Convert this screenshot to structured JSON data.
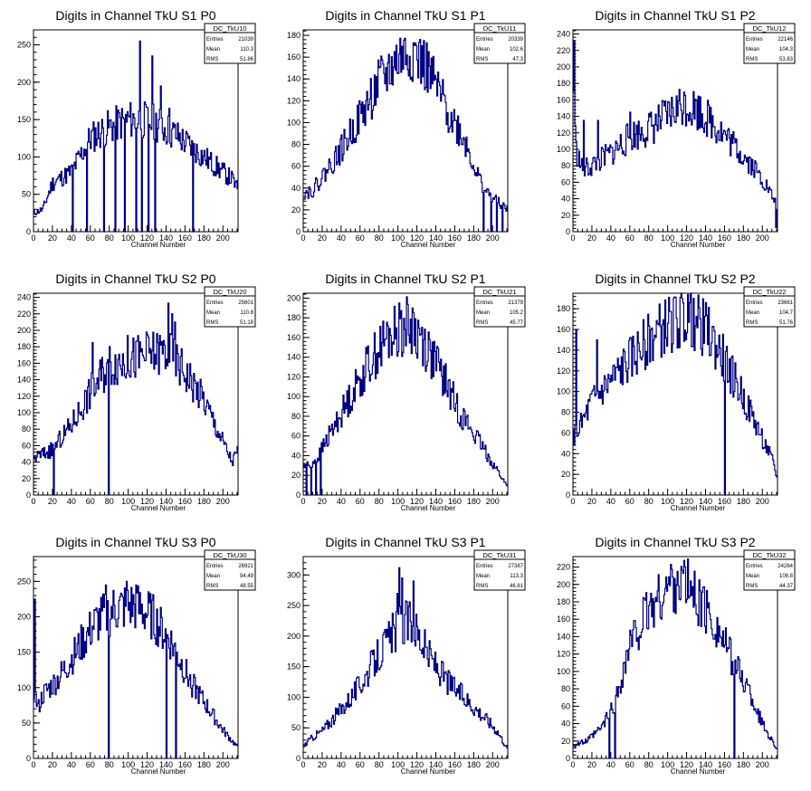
{
  "page": {
    "background": "#ffffff",
    "line_color": "#000080"
  },
  "chart_data": [
    {
      "type": "histogram",
      "title": "Digits in Channel TkU S1 P0",
      "xlabel": "Channel Number",
      "ylabel": "",
      "xlim": [
        0,
        216
      ],
      "ylim": [
        0,
        270
      ],
      "xticks": [
        0,
        20,
        40,
        60,
        80,
        100,
        120,
        140,
        160,
        180,
        200
      ],
      "yticks": [
        0,
        50,
        100,
        150,
        200,
        250
      ],
      "stats": {
        "name": "DC_TkU10",
        "entries": "21039",
        "mean": "110.3",
        "rms": "51.86"
      },
      "profile": [
        [
          0,
          25
        ],
        [
          10,
          30
        ],
        [
          20,
          65
        ],
        [
          40,
          80
        ],
        [
          60,
          125
        ],
        [
          80,
          140
        ],
        [
          100,
          150
        ],
        [
          115,
          150
        ],
        [
          130,
          145
        ],
        [
          150,
          130
        ],
        [
          170,
          110
        ],
        [
          190,
          90
        ],
        [
          210,
          70
        ],
        [
          216,
          55
        ]
      ],
      "spikes": [
        [
          112,
          255
        ],
        [
          125,
          235
        ],
        [
          134,
          195
        ],
        [
          143,
          165
        ]
      ],
      "dips": [
        [
          41,
          0
        ],
        [
          56,
          0
        ],
        [
          74,
          0
        ],
        [
          86,
          0
        ],
        [
          96,
          0
        ],
        [
          108,
          0
        ],
        [
          114,
          0
        ],
        [
          121,
          0
        ],
        [
          128,
          0
        ],
        [
          168,
          0
        ]
      ],
      "seed": 11
    },
    {
      "type": "histogram",
      "title": "Digits in Channel TkU S1 P1",
      "xlabel": "Channel Number",
      "ylabel": "",
      "xlim": [
        0,
        216
      ],
      "ylim": [
        0,
        185
      ],
      "xticks": [
        0,
        20,
        40,
        60,
        80,
        100,
        120,
        140,
        160,
        180,
        200
      ],
      "yticks": [
        0,
        20,
        40,
        60,
        80,
        100,
        120,
        140,
        160,
        180
      ],
      "stats": {
        "name": "DC_TkU11",
        "entries": "20339",
        "mean": "102.6",
        "rms": "47.3"
      },
      "profile": [
        [
          0,
          35
        ],
        [
          10,
          38
        ],
        [
          20,
          50
        ],
        [
          40,
          75
        ],
        [
          60,
          105
        ],
        [
          80,
          135
        ],
        [
          100,
          158
        ],
        [
          115,
          165
        ],
        [
          130,
          150
        ],
        [
          150,
          115
        ],
        [
          170,
          85
        ],
        [
          185,
          50
        ],
        [
          195,
          35
        ],
        [
          216,
          20
        ]
      ],
      "spikes": [
        [
          118,
          173
        ],
        [
          104,
          170
        ]
      ],
      "dips": [
        [
          190,
          0
        ],
        [
          198,
          0
        ],
        [
          204,
          0
        ],
        [
          210,
          0
        ]
      ],
      "seed": 22
    },
    {
      "type": "histogram",
      "title": "Digits in Channel TkU S1 P2",
      "xlabel": "Channel Number",
      "ylabel": "",
      "xlim": [
        0,
        216
      ],
      "ylim": [
        0,
        245
      ],
      "xticks": [
        0,
        20,
        40,
        60,
        80,
        100,
        120,
        140,
        160,
        180,
        200
      ],
      "yticks": [
        0,
        20,
        40,
        60,
        80,
        100,
        120,
        140,
        160,
        180,
        200,
        220,
        240
      ],
      "stats": {
        "name": "DC_TkU12",
        "entries": "22146",
        "mean": "104.3",
        "rms": "53.83"
      },
      "profile": [
        [
          0,
          200
        ],
        [
          3,
          100
        ],
        [
          10,
          75
        ],
        [
          20,
          80
        ],
        [
          40,
          95
        ],
        [
          60,
          115
        ],
        [
          80,
          125
        ],
        [
          100,
          140
        ],
        [
          115,
          155
        ],
        [
          130,
          150
        ],
        [
          150,
          130
        ],
        [
          170,
          105
        ],
        [
          190,
          80
        ],
        [
          205,
          55
        ],
        [
          216,
          30
        ]
      ],
      "spikes": [
        [
          1,
          232
        ],
        [
          11,
          135
        ],
        [
          26,
          135
        ],
        [
          60,
          145
        ]
      ],
      "dips": [
        [
          214,
          5
        ]
      ],
      "seed": 33
    },
    {
      "type": "histogram",
      "title": "Digits in Channel TkU S2 P0",
      "xlabel": "Channel Number",
      "ylabel": "",
      "xlim": [
        0,
        216
      ],
      "ylim": [
        0,
        245
      ],
      "xticks": [
        0,
        20,
        40,
        60,
        80,
        100,
        120,
        140,
        160,
        180,
        200
      ],
      "yticks": [
        0,
        20,
        40,
        60,
        80,
        100,
        120,
        140,
        160,
        180,
        200,
        220,
        240
      ],
      "stats": {
        "name": "DC_TkU20",
        "entries": "25601",
        "mean": "110.8",
        "rms": "51.18"
      },
      "profile": [
        [
          0,
          45
        ],
        [
          10,
          50
        ],
        [
          20,
          55
        ],
        [
          40,
          85
        ],
        [
          60,
          125
        ],
        [
          80,
          160
        ],
        [
          100,
          165
        ],
        [
          120,
          170
        ],
        [
          140,
          175
        ],
        [
          160,
          150
        ],
        [
          180,
          115
        ],
        [
          200,
          65
        ],
        [
          210,
          40
        ],
        [
          216,
          55
        ]
      ],
      "spikes": [
        [
          62,
          185
        ],
        [
          142,
          233
        ],
        [
          146,
          220
        ],
        [
          149,
          210
        ]
      ],
      "dips": [
        [
          21,
          0
        ],
        [
          79,
          0
        ]
      ],
      "seed": 44
    },
    {
      "type": "histogram",
      "title": "Digits in Channel TkU S2 P1",
      "xlabel": "Channel Number",
      "ylabel": "",
      "xlim": [
        0,
        216
      ],
      "ylim": [
        0,
        205
      ],
      "xticks": [
        0,
        20,
        40,
        60,
        80,
        100,
        120,
        140,
        160,
        180,
        200
      ],
      "yticks": [
        0,
        20,
        40,
        60,
        80,
        100,
        120,
        140,
        160,
        180,
        200
      ],
      "stats": {
        "name": "DC_TkU21",
        "entries": "21379",
        "mean": "105.2",
        "rms": "45.77"
      },
      "profile": [
        [
          0,
          30
        ],
        [
          7,
          30
        ],
        [
          15,
          38
        ],
        [
          30,
          65
        ],
        [
          50,
          100
        ],
        [
          70,
          135
        ],
        [
          90,
          160
        ],
        [
          110,
          172
        ],
        [
          125,
          160
        ],
        [
          145,
          125
        ],
        [
          165,
          85
        ],
        [
          185,
          55
        ],
        [
          205,
          25
        ],
        [
          216,
          8
        ]
      ],
      "spikes": [
        [
          101,
          195
        ],
        [
          115,
          190
        ]
      ],
      "dips": [
        [
          3,
          0
        ],
        [
          8,
          0
        ],
        [
          13,
          0
        ],
        [
          18,
          0
        ]
      ],
      "seed": 55
    },
    {
      "type": "histogram",
      "title": "Digits in Channel TkU S2 P2",
      "xlabel": "Channel Number",
      "ylabel": "",
      "xlim": [
        0,
        216
      ],
      "ylim": [
        0,
        195
      ],
      "xticks": [
        0,
        20,
        40,
        60,
        80,
        100,
        120,
        140,
        160,
        180,
        200
      ],
      "yticks": [
        0,
        20,
        40,
        60,
        80,
        100,
        120,
        140,
        160,
        180
      ],
      "stats": {
        "name": "DC_TkU22",
        "entries": "23661",
        "mean": "104.7",
        "rms": "51.76"
      },
      "profile": [
        [
          0,
          55
        ],
        [
          10,
          70
        ],
        [
          20,
          90
        ],
        [
          40,
          110
        ],
        [
          60,
          130
        ],
        [
          80,
          150
        ],
        [
          100,
          165
        ],
        [
          120,
          172
        ],
        [
          140,
          160
        ],
        [
          160,
          130
        ],
        [
          180,
          95
        ],
        [
          200,
          55
        ],
        [
          210,
          35
        ],
        [
          216,
          15
        ]
      ],
      "spikes": [
        [
          3,
          160
        ],
        [
          25,
          150
        ],
        [
          127,
          190
        ]
      ],
      "dips": [
        [
          160,
          0
        ]
      ],
      "seed": 66
    },
    {
      "type": "histogram",
      "title": "Digits in Channel TkU S3 P0",
      "xlabel": "Channel Number",
      "ylabel": "",
      "xlim": [
        0,
        216
      ],
      "ylim": [
        0,
        285
      ],
      "xticks": [
        0,
        20,
        40,
        60,
        80,
        100,
        120,
        140,
        160,
        180,
        200
      ],
      "yticks": [
        0,
        50,
        100,
        150,
        200,
        250
      ],
      "stats": {
        "name": "DC_TkU30",
        "entries": "26921",
        "mean": "94.49",
        "rms": "48.55"
      },
      "profile": [
        [
          0,
          100
        ],
        [
          5,
          70
        ],
        [
          10,
          90
        ],
        [
          25,
          110
        ],
        [
          45,
          150
        ],
        [
          65,
          190
        ],
        [
          85,
          210
        ],
        [
          105,
          215
        ],
        [
          125,
          200
        ],
        [
          145,
          165
        ],
        [
          165,
          110
        ],
        [
          185,
          70
        ],
        [
          200,
          40
        ],
        [
          216,
          15
        ]
      ],
      "spikes": [
        [
          1,
          225
        ],
        [
          76,
          245
        ],
        [
          98,
          250
        ],
        [
          108,
          245
        ]
      ],
      "dips": [
        [
          79,
          0
        ],
        [
          140,
          0
        ],
        [
          150,
          0
        ]
      ],
      "seed": 77
    },
    {
      "type": "histogram",
      "title": "Digits in Channel TkU S3 P1",
      "xlabel": "Channel Number",
      "ylabel": "",
      "xlim": [
        0,
        216
      ],
      "ylim": [
        0,
        330
      ],
      "xticks": [
        0,
        20,
        40,
        60,
        80,
        100,
        120,
        140,
        160,
        180,
        200
      ],
      "yticks": [
        0,
        50,
        100,
        150,
        200,
        250,
        300
      ],
      "stats": {
        "name": "DC_TkU31",
        "entries": "27387",
        "mean": "113.3",
        "rms": "46.81"
      },
      "profile": [
        [
          0,
          20
        ],
        [
          10,
          35
        ],
        [
          20,
          45
        ],
        [
          40,
          80
        ],
        [
          60,
          120
        ],
        [
          80,
          170
        ],
        [
          100,
          215
        ],
        [
          115,
          225
        ],
        [
          130,
          175
        ],
        [
          150,
          130
        ],
        [
          170,
          100
        ],
        [
          190,
          70
        ],
        [
          205,
          45
        ],
        [
          216,
          15
        ]
      ],
      "spikes": [
        [
          101,
          312
        ],
        [
          104,
          295
        ],
        [
          116,
          290
        ],
        [
          99,
          270
        ]
      ],
      "dips": [],
      "seed": 88
    },
    {
      "type": "histogram",
      "title": "Digits in Channel TkU S3 P2",
      "xlabel": "Channel Number",
      "ylabel": "",
      "xlim": [
        0,
        216
      ],
      "ylim": [
        0,
        232
      ],
      "xticks": [
        0,
        20,
        40,
        60,
        80,
        100,
        120,
        140,
        160,
        180,
        200
      ],
      "yticks": [
        0,
        20,
        40,
        60,
        80,
        100,
        120,
        140,
        160,
        180,
        200,
        220
      ],
      "stats": {
        "name": "DC_TkU32",
        "entries": "24264",
        "mean": "108.8",
        "rms": "44.37"
      },
      "profile": [
        [
          0,
          15
        ],
        [
          15,
          20
        ],
        [
          30,
          35
        ],
        [
          45,
          65
        ],
        [
          60,
          130
        ],
        [
          80,
          170
        ],
        [
          100,
          195
        ],
        [
          115,
          205
        ],
        [
          130,
          185
        ],
        [
          150,
          155
        ],
        [
          170,
          110
        ],
        [
          185,
          80
        ],
        [
          200,
          40
        ],
        [
          216,
          10
        ]
      ],
      "spikes": [
        [
          103,
          223
        ],
        [
          110,
          215
        ]
      ],
      "dips": [
        [
          38,
          0
        ],
        [
          44,
          0
        ],
        [
          170,
          0
        ]
      ],
      "seed": 99
    }
  ]
}
